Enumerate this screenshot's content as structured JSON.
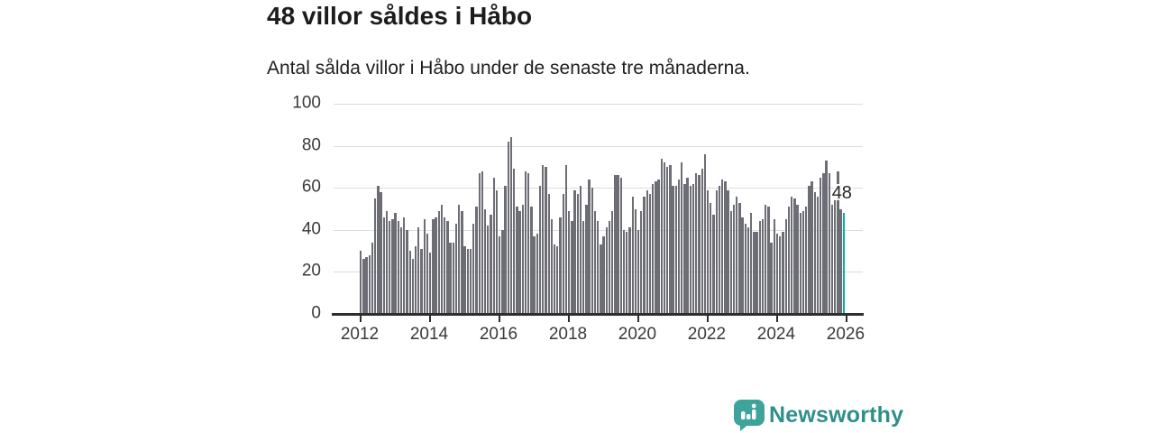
{
  "header": {
    "title": "48 villor såldes i Håbo",
    "subtitle": "Antal sålda villor i Håbo under de senaste tre månaderna."
  },
  "chart_data": {
    "type": "bar",
    "title": "48 villor såldes i Håbo",
    "subtitle": "Antal sålda villor i Håbo under de senaste tre månaderna.",
    "xlabel": "",
    "ylabel": "",
    "ylim": [
      0,
      100
    ],
    "y_ticks": [
      0,
      20,
      40,
      60,
      80,
      100
    ],
    "x_tick_labels": [
      "2012",
      "2014",
      "2016",
      "2018",
      "2020",
      "2022",
      "2024",
      "2026"
    ],
    "grid": "horizontal",
    "legend": "none",
    "frequency": "monthly",
    "start_year": 2012,
    "values": [
      30,
      26,
      27,
      28,
      34,
      55,
      61,
      58,
      46,
      49,
      44,
      45,
      48,
      44,
      41,
      46,
      40,
      30,
      26,
      32,
      41,
      31,
      45,
      38,
      29,
      45,
      46,
      49,
      52,
      46,
      44,
      34,
      34,
      43,
      52,
      49,
      32,
      31,
      31,
      43,
      51,
      67,
      68,
      50,
      42,
      47,
      65,
      59,
      37,
      40,
      61,
      82,
      84,
      69,
      51,
      49,
      52,
      68,
      67,
      51,
      37,
      38,
      61,
      71,
      70,
      57,
      45,
      33,
      32,
      46,
      57,
      71,
      49,
      44,
      59,
      57,
      61,
      44,
      52,
      64,
      60,
      49,
      44,
      33,
      37,
      41,
      44,
      49,
      66,
      66,
      65,
      40,
      39,
      41,
      56,
      50,
      40,
      49,
      56,
      59,
      57,
      62,
      63,
      64,
      74,
      72,
      70,
      71,
      61,
      61,
      64,
      72,
      62,
      65,
      61,
      62,
      67,
      66,
      69,
      76,
      59,
      53,
      47,
      59,
      61,
      64,
      63,
      59,
      49,
      52,
      56,
      53,
      46,
      43,
      41,
      48,
      39,
      39,
      44,
      45,
      52,
      51,
      34,
      45,
      38,
      37,
      39,
      45,
      51,
      56,
      55,
      52,
      48,
      49,
      51,
      61,
      63,
      58,
      56,
      65,
      67,
      73,
      67,
      52,
      54,
      68,
      50,
      48
    ],
    "bar_color": "#6d6d76",
    "highlight": {
      "index": 167,
      "label": "48",
      "color": "#00b1a9"
    },
    "gridline_color": "#dcdcdc",
    "axis_color": "#2e2e2e",
    "tick_label_color": "#3a3a3a"
  },
  "footer": {
    "brand": "Newsworthy",
    "brand_text_color": "#2f8f89",
    "logo_color": "#3da39c",
    "logo_glyph_color": "#ffffff"
  }
}
